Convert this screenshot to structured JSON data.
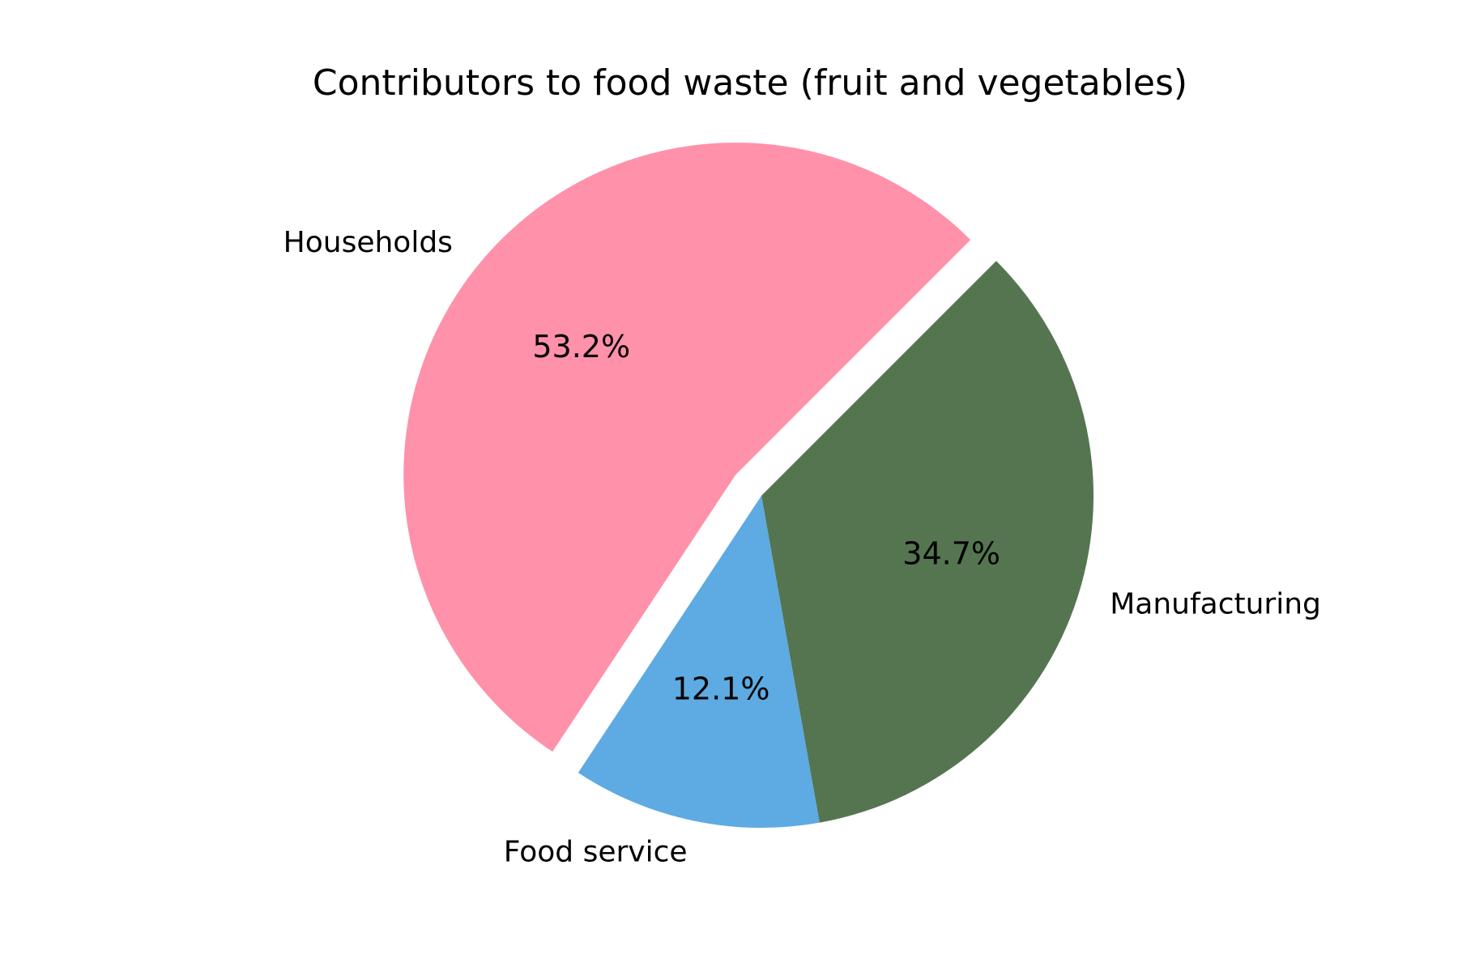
{
  "chart_data": {
    "type": "pie",
    "title": "Contributors to food waste (fruit and vegetables)",
    "slices": [
      {
        "label": "Manufacturing",
        "value": 34.7,
        "pct_label": "34.7%",
        "color": "#557551",
        "exploded": false
      },
      {
        "label": "Food service",
        "value": 12.1,
        "pct_label": "12.1%",
        "color": "#5DABE2",
        "exploded": false
      },
      {
        "label": "Households",
        "value": 53.2,
        "pct_label": "53.2%",
        "color": "#FF91AA",
        "exploded": true
      }
    ],
    "start_angle_deg": 45,
    "direction": "clockwise",
    "legend": "none"
  }
}
